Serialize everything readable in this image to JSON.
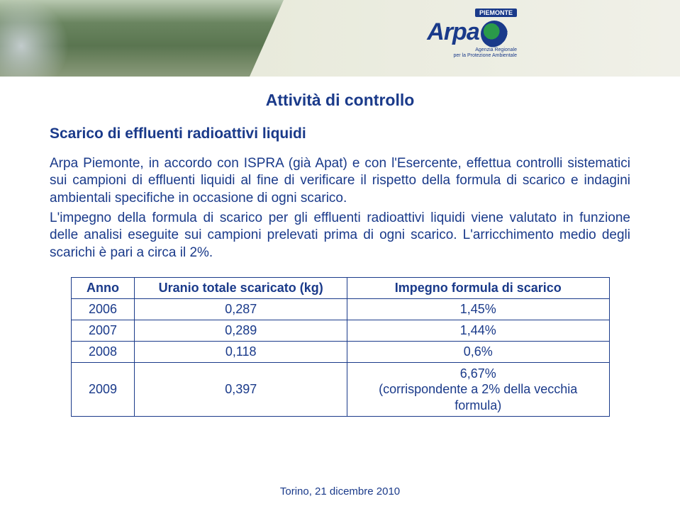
{
  "header": {
    "region_tag": "PIEMONTE",
    "logo_text": "Arpa",
    "logo_sub": "Agenzia Regionale\nper la Protezione Ambientale"
  },
  "title": "Attività di controllo",
  "subtitle": "Scarico di effluenti radioattivi liquidi",
  "paragraphs": [
    "Arpa Piemonte, in accordo con ISPRA (già Apat) e con l'Esercente, effettua controlli sistematici sui campioni di effluenti liquidi al fine di verificare il rispetto della formula di scarico e indagini ambientali specifiche in occasione di ogni scarico.",
    "L'impegno della formula di scarico per gli effluenti radioattivi liquidi viene valutato in funzione delle analisi eseguite sui campioni prelevati prima di ogni scarico. L'arricchimento medio degli scarichi è pari a circa il 2%."
  ],
  "table": {
    "columns": [
      "Anno",
      "Uranio totale scaricato (kg)",
      "Impegno formula di scarico"
    ],
    "col_widths": [
      "90px",
      "300px",
      "370px"
    ],
    "border_color": "#1a3a8a",
    "text_color": "#1a3a8a",
    "font_size": 18,
    "rows": [
      {
        "anno": "2006",
        "uranio": "0,287",
        "impegno": "1,45%"
      },
      {
        "anno": "2007",
        "uranio": "0,289",
        "impegno": "1,44%"
      },
      {
        "anno": "2008",
        "uranio": "0,118",
        "impegno": "0,6%"
      },
      {
        "anno": "2009",
        "uranio": "0,397",
        "impegno": "6,67%\n(corrispondente a 2% della vecchia formula)"
      }
    ]
  },
  "footer": "Torino, 21 dicembre 2010",
  "colors": {
    "primary": "#1a3a8a",
    "background": "#ffffff"
  }
}
